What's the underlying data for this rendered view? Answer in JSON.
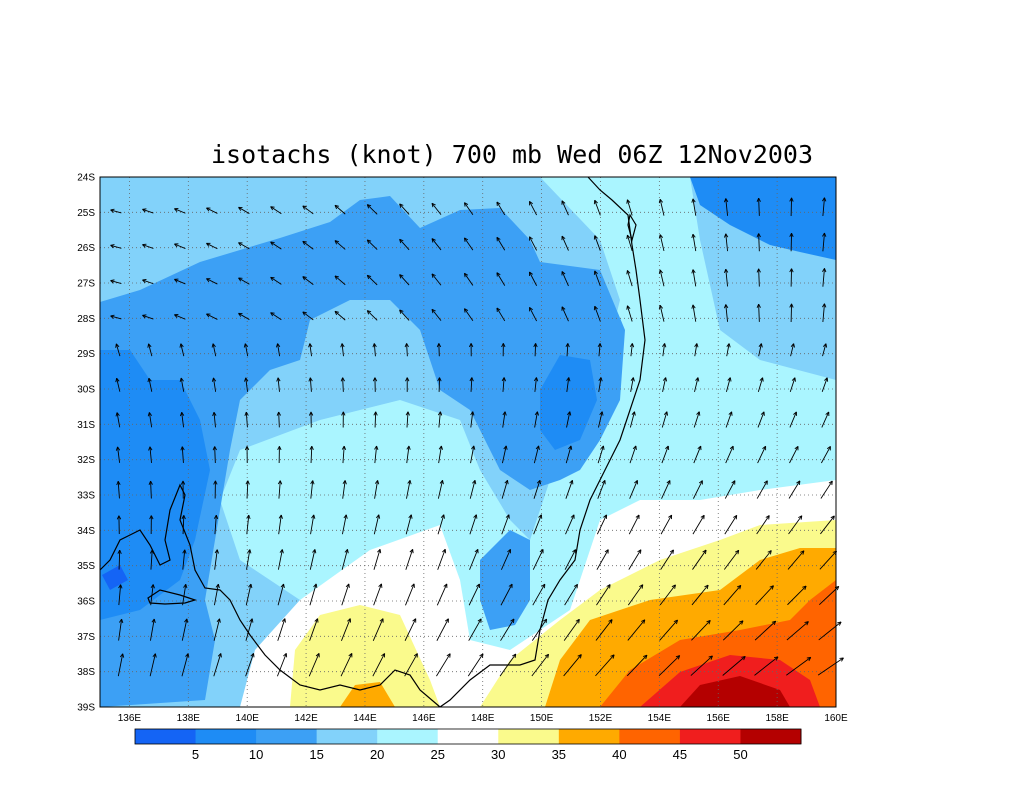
{
  "title": "isotachs (knot) 700 mb Wed 06Z 12Nov2003",
  "map": {
    "lat_labels": [
      "24S",
      "25S",
      "26S",
      "27S",
      "28S",
      "29S",
      "30S",
      "31S",
      "32S",
      "33S",
      "34S",
      "35S",
      "36S",
      "37S",
      "38S",
      "39S"
    ],
    "lon_labels": [
      "136E",
      "138E",
      "140E",
      "142E",
      "144E",
      "146E",
      "148E",
      "150E",
      "152E",
      "154E",
      "156E",
      "158E",
      "160E"
    ],
    "lat_range": [
      -39,
      -24
    ],
    "lon_range": [
      135,
      160
    ],
    "grid": "dotted"
  },
  "colorbar": {
    "labels": [
      "5",
      "10",
      "15",
      "20",
      "25",
      "30",
      "35",
      "40",
      "45",
      "50"
    ],
    "colors": [
      "#1464f5",
      "#1e8cf5",
      "#3ca0f5",
      "#82d2fa",
      "#aaf5ff",
      "#ffffff",
      "#fafa8c",
      "#ffaa00",
      "#ff6400",
      "#f01e1e",
      "#b40000"
    ]
  }
}
